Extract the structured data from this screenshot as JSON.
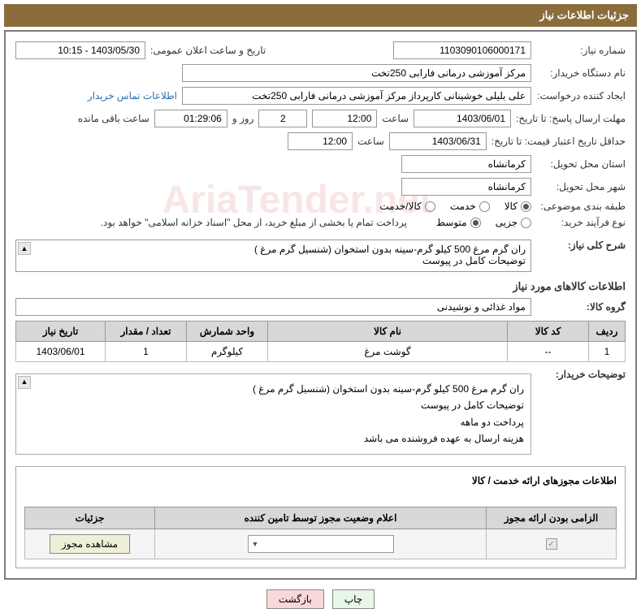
{
  "header": {
    "title": "جزئیات اطلاعات نیاز"
  },
  "info": {
    "need_number_label": "شماره نیاز:",
    "need_number": "1103090106000171",
    "announce_label": "تاریخ و ساعت اعلان عمومی:",
    "announce_value": "1403/05/30 - 10:15",
    "buyer_label": "نام دستگاه خریدار:",
    "buyer_value": "مرکز آموزشی  درمانی فارابی 250تخت",
    "requester_label": "ایجاد کننده درخواست:",
    "requester_value": "علی بلیلی خوشینانی کارپرداز مرکز آموزشی  درمانی فارابی 250تخت",
    "contact_link": "اطلاعات تماس خریدار",
    "deadline_send_label": "مهلت ارسال پاسخ:",
    "ta_label": "تا تاریخ:",
    "deadline_date": "1403/06/01",
    "time_label": "ساعت",
    "deadline_time": "12:00",
    "days_label": "روز و",
    "days_value": "2",
    "remain_time": "01:29:06",
    "remain_label": "ساعت باقی مانده",
    "min_validity_label": "حداقل تاریخ اعتبار قیمت:",
    "validity_date": "1403/06/31",
    "validity_time": "12:00",
    "province_label": "استان محل تحویل:",
    "province_value": "کرمانشاه",
    "city_label": "شهر محل تحویل:",
    "city_value": "کرمانشاه",
    "category_label": "طبقه بندی موضوعی:",
    "cat_goods": "کالا",
    "cat_service": "خدمت",
    "cat_both": "کالا/خدمت",
    "purchase_type_label": "نوع فرآیند خرید:",
    "pt_partial": "جزیی",
    "pt_medium": "متوسط",
    "treasury_note": "پرداخت تمام یا بخشی از مبلغ خرید، از محل \"اسناد خزانه اسلامی\" خواهد بود.",
    "summary_label": "شرح کلی نیاز:",
    "summary_line1": "ران گرم مرغ 500 کیلو گرم-سینه بدون استخوان (شنسیل گرم مرغ )",
    "summary_line2": "توضیحات کامل در پیوست",
    "goods_section_title": "اطلاعات کالاهای مورد نیاز",
    "group_label": "گروه کالا:",
    "group_value": "مواد غذائی و نوشیدنی"
  },
  "table": {
    "headers": {
      "row": "ردیف",
      "code": "کد کالا",
      "name": "نام کالا",
      "unit": "واحد شمارش",
      "qty": "تعداد / مقدار",
      "date": "تاریخ نیاز"
    },
    "rows": [
      {
        "row": "1",
        "code": "--",
        "name": "گوشت مرغ",
        "unit": "کیلوگرم",
        "qty": "1",
        "date": "1403/06/01"
      }
    ]
  },
  "buyer_desc": {
    "label": "توضیحات خریدار:",
    "line1": "ران گرم مرغ 500 کیلو گرم-سینه بدون استخوان (شنسیل گرم مرغ )",
    "line2": "توضیحات کامل در پیوست",
    "line3": "پرداخت دو ماهه",
    "line4": "هزینه ارسال به عهده فروشنده می باشد"
  },
  "permit": {
    "title": "اطلاعات مجوزهای ارائه خدمت / کالا",
    "headers": {
      "mandatory": "الزامی بودن ارائه مجوز",
      "status": "اعلام وضعیت مجوز توسط تامین کننده",
      "details": "جزئیات"
    },
    "view_btn": "مشاهده مجوز"
  },
  "buttons": {
    "print": "چاپ",
    "back": "بازگشت"
  }
}
